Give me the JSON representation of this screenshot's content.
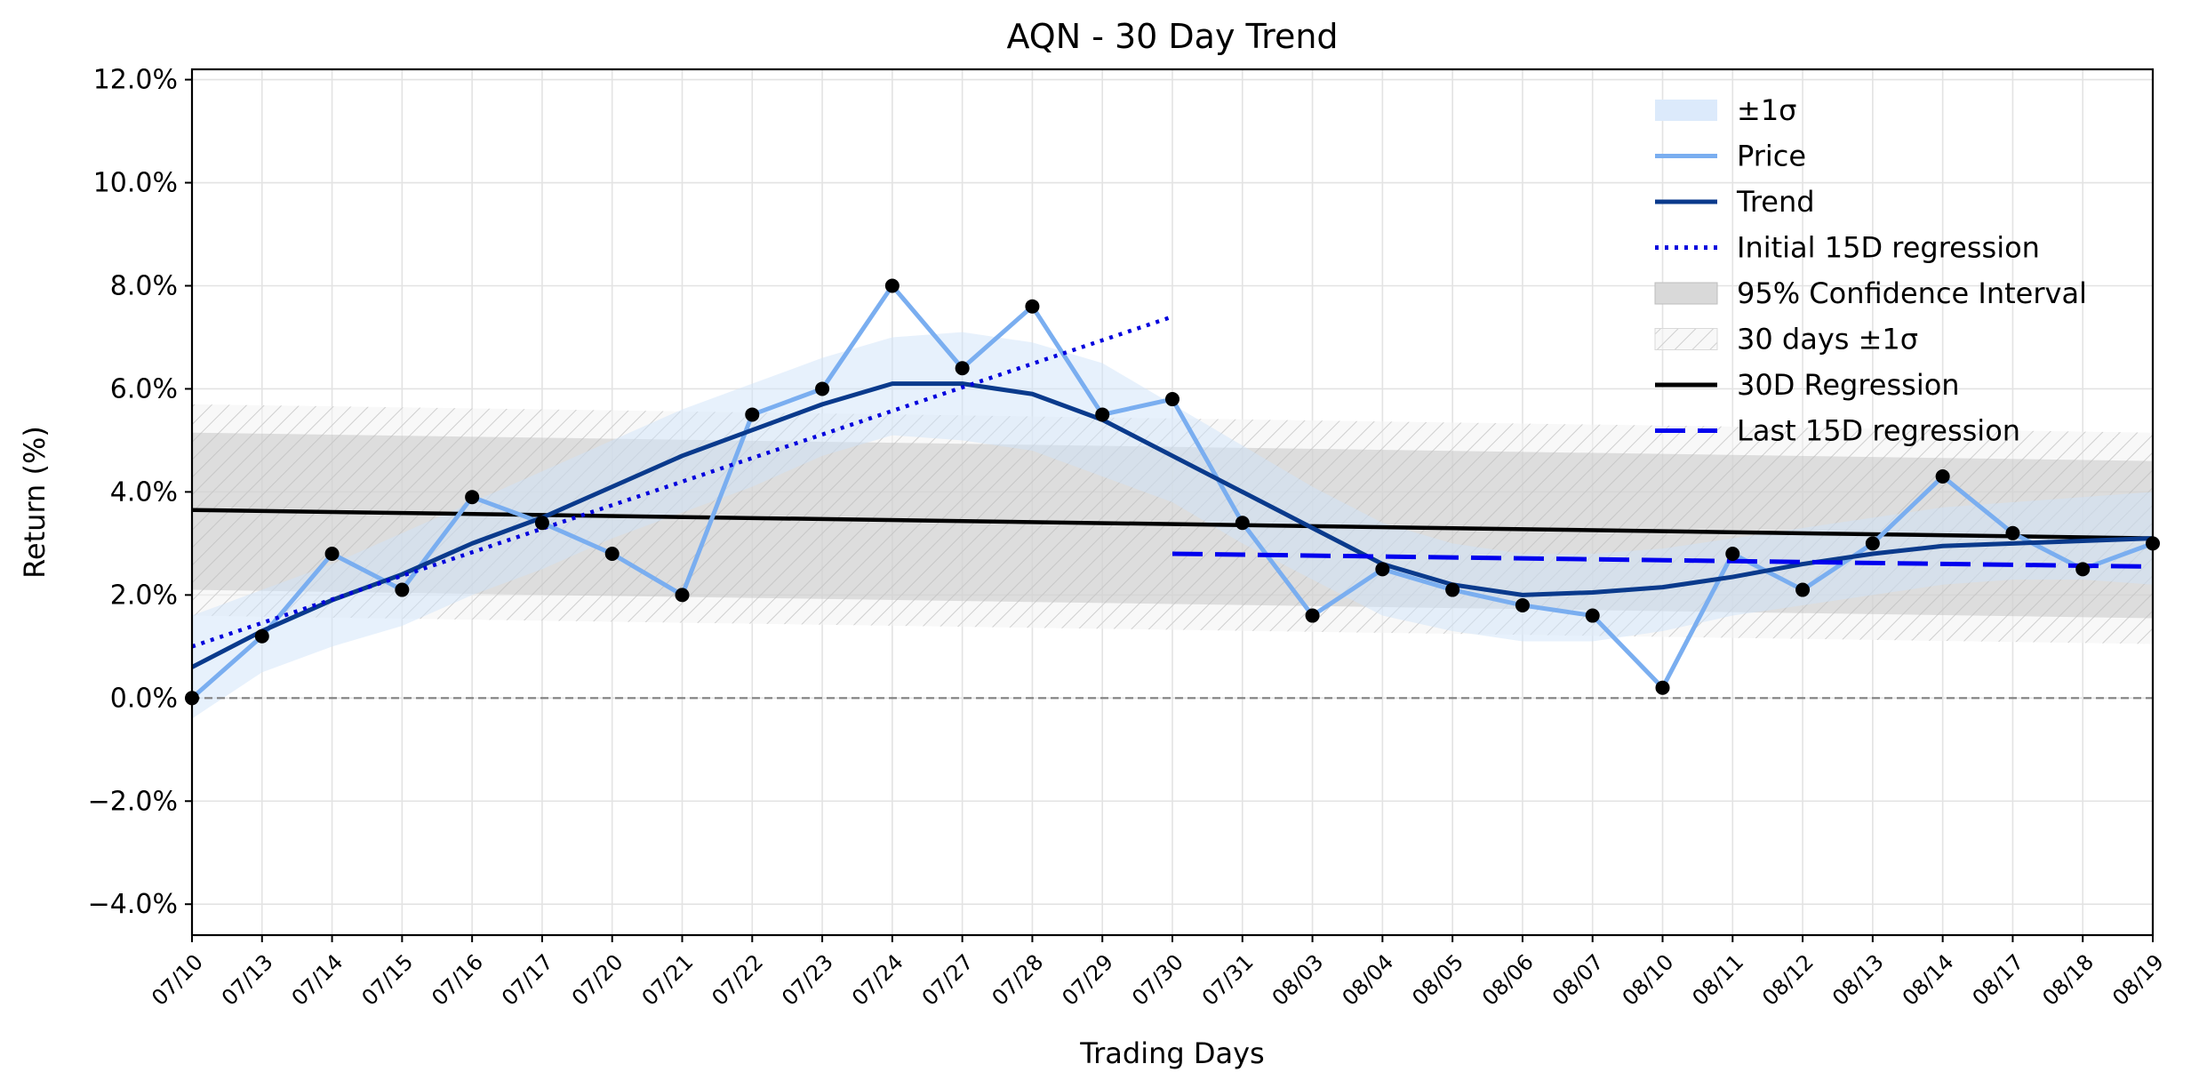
{
  "chart_data": {
    "type": "line",
    "title": "AQN - 30 Day Trend",
    "xlabel": "Trading Days",
    "ylabel": "Return (%)",
    "ylim": [
      -4.6,
      12.2
    ],
    "yticks": [
      -4.0,
      -2.0,
      0.0,
      2.0,
      4.0,
      6.0,
      8.0,
      10.0,
      12.0
    ],
    "ytick_labels": [
      "−4.0%",
      "−2.0%",
      "0.0%",
      "2.0%",
      "4.0%",
      "6.0%",
      "8.0%",
      "10.0%",
      "12.0%"
    ],
    "grid": true,
    "legend_position": "top-right",
    "categories": [
      "07/10",
      "07/13",
      "07/14",
      "07/15",
      "07/16",
      "07/17",
      "07/20",
      "07/21",
      "07/22",
      "07/23",
      "07/24",
      "07/27",
      "07/28",
      "07/29",
      "07/30",
      "07/31",
      "08/03",
      "08/04",
      "08/05",
      "08/06",
      "08/07",
      "08/10",
      "08/11",
      "08/12",
      "08/13",
      "08/14",
      "08/17",
      "08/18",
      "08/19"
    ],
    "series": [
      {
        "name": "Price",
        "color": "#7aaef0",
        "values": [
          0.0,
          1.2,
          2.8,
          2.1,
          3.9,
          3.4,
          2.8,
          2.0,
          5.5,
          6.0,
          8.0,
          6.4,
          7.6,
          5.5,
          5.8,
          3.4,
          1.6,
          2.5,
          2.1,
          1.8,
          1.6,
          0.2,
          2.8,
          2.1,
          3.0,
          4.3,
          3.2,
          2.5,
          3.0
        ]
      },
      {
        "name": "Trend",
        "color": "#0a3a8c",
        "values": [
          0.6,
          1.3,
          1.9,
          2.4,
          3.0,
          3.5,
          4.1,
          4.7,
          5.2,
          5.7,
          6.1,
          6.1,
          5.9,
          5.4,
          4.7,
          4.0,
          3.3,
          2.6,
          2.2,
          2.0,
          2.05,
          2.15,
          2.35,
          2.6,
          2.8,
          2.95,
          3.0,
          3.05,
          3.1
        ]
      },
      {
        "name": "Initial 15D regression",
        "color": "#0000dd",
        "style": "dotted",
        "x_range": [
          0,
          14
        ],
        "y_range": [
          1.0,
          7.4
        ]
      },
      {
        "name": "30D Regression",
        "color": "#000000",
        "style": "solid",
        "x_range": [
          0,
          28
        ],
        "y_range": [
          3.65,
          3.1
        ]
      },
      {
        "name": "Last 15D regression",
        "color": "#0000ee",
        "style": "dashed",
        "x_range": [
          14,
          28
        ],
        "y_range": [
          2.8,
          2.55
        ]
      },
      {
        "name": "±1σ",
        "color": "#d6e8fb",
        "style": "band",
        "lower": [
          -0.4,
          0.5,
          1.0,
          1.4,
          2.0,
          2.5,
          3.1,
          3.6,
          4.1,
          4.7,
          5.1,
          5.0,
          4.8,
          4.3,
          3.8,
          3.0,
          2.3,
          1.6,
          1.3,
          1.1,
          1.1,
          1.3,
          1.6,
          1.8,
          2.0,
          2.2,
          2.3,
          2.3,
          2.2
        ],
        "upper": [
          1.6,
          2.1,
          2.6,
          3.2,
          3.8,
          4.4,
          5.0,
          5.6,
          6.1,
          6.6,
          7.0,
          7.1,
          6.9,
          6.5,
          5.7,
          4.9,
          4.1,
          3.4,
          3.0,
          2.8,
          2.8,
          2.9,
          3.1,
          3.3,
          3.5,
          3.7,
          3.8,
          3.9,
          4.0
        ]
      },
      {
        "name": "95% Confidence Interval",
        "color": "#bdbdbd",
        "style": "band",
        "lower_range": [
          2.1,
          1.55
        ],
        "upper_range": [
          5.15,
          4.6
        ]
      },
      {
        "name": "30 days ±1σ",
        "color": "#e6e6e6",
        "style": "hatched-band",
        "lower_range": [
          1.6,
          1.05
        ],
        "upper_range": [
          5.7,
          5.15
        ]
      }
    ],
    "baseline": {
      "y": 0.0,
      "style": "dashed",
      "color": "#808080"
    },
    "legend": [
      "±1σ",
      "Price",
      "Trend",
      "Initial 15D regression",
      "95% Confidence Interval",
      "30 days ±1σ",
      "30D Regression",
      "Last 15D regression"
    ]
  }
}
